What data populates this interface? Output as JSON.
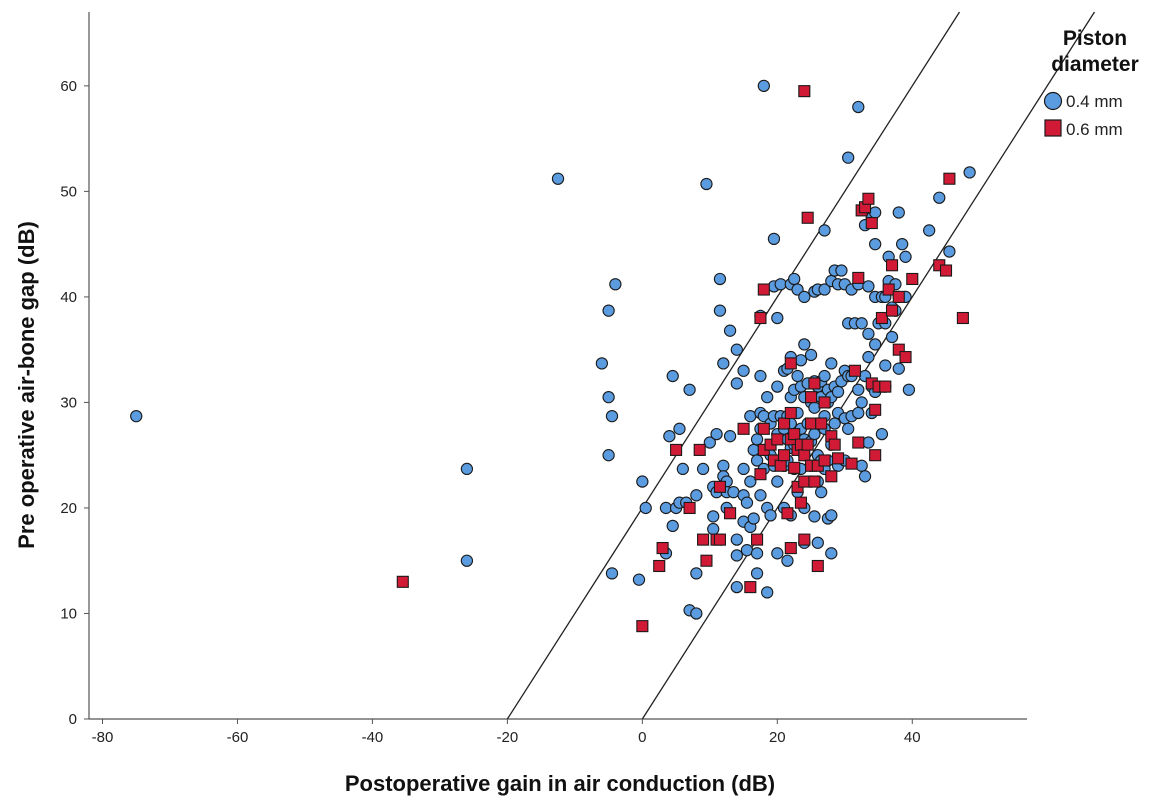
{
  "chart_data": {
    "type": "scatter",
    "xlabel": "Postoperative gain in air conduction (dB)",
    "ylabel": "Pre operative air-bone gap (dB)",
    "xlim": [
      -82,
      57
    ],
    "ylim": [
      0,
      67
    ],
    "x_ticks": [
      -80,
      -60,
      -40,
      -20,
      0,
      20,
      40
    ],
    "y_ticks": [
      0,
      10,
      20,
      30,
      40,
      50,
      60
    ],
    "grid": false,
    "legend": {
      "title": "Piston diameter",
      "title_lines": [
        "Piston",
        "diameter"
      ],
      "placement": "top-right",
      "entries": [
        "0.4 mm",
        "0.6 mm"
      ]
    },
    "reference_lines": [
      {
        "x0": -20,
        "y0": 0,
        "slope": 1
      },
      {
        "x0": 0,
        "y0": 0,
        "slope": 1
      }
    ],
    "series": [
      {
        "name": "0.4 mm",
        "marker": "circle",
        "color": "#5B9BDF",
        "edge": "#1a1a1a",
        "points": [
          [
            -75,
            28.7
          ],
          [
            -26,
            23.7
          ],
          [
            -26,
            15
          ],
          [
            -12.5,
            51.2
          ],
          [
            -6,
            33.7
          ],
          [
            -5,
            38.7
          ],
          [
            -5,
            30.5
          ],
          [
            -5,
            25
          ],
          [
            -4.5,
            28.7
          ],
          [
            -4,
            41.2
          ],
          [
            -4.5,
            13.8
          ],
          [
            -0.5,
            13.2
          ],
          [
            0,
            22.5
          ],
          [
            0.5,
            20
          ],
          [
            3.5,
            20
          ],
          [
            4,
            26.8
          ],
          [
            3.5,
            15.7
          ],
          [
            4.5,
            32.5
          ],
          [
            4.5,
            18.3
          ],
          [
            5,
            20
          ],
          [
            5.5,
            27.5
          ],
          [
            5.5,
            20.5
          ],
          [
            6.5,
            20.5
          ],
          [
            6,
            23.7
          ],
          [
            7,
            31.2
          ],
          [
            8,
            21.2
          ],
          [
            8,
            13.8
          ],
          [
            7,
            10.3
          ],
          [
            8,
            10
          ],
          [
            9,
            23.7
          ],
          [
            9.5,
            50.7
          ],
          [
            10,
            26.2
          ],
          [
            10.5,
            22
          ],
          [
            10.5,
            19.2
          ],
          [
            10.5,
            18
          ],
          [
            11,
            27
          ],
          [
            11,
            21.5
          ],
          [
            11.5,
            41.7
          ],
          [
            11.5,
            38.7
          ],
          [
            12,
            33.7
          ],
          [
            12,
            24
          ],
          [
            12,
            23
          ],
          [
            12.5,
            22.5
          ],
          [
            12.5,
            21.5
          ],
          [
            12.5,
            20
          ],
          [
            13,
            36.8
          ],
          [
            13,
            26.8
          ],
          [
            13.5,
            21.5
          ],
          [
            14,
            35
          ],
          [
            14,
            31.8
          ],
          [
            14,
            17
          ],
          [
            14,
            15.5
          ],
          [
            14,
            12.5
          ],
          [
            15,
            33
          ],
          [
            15,
            23.7
          ],
          [
            15,
            21.2
          ],
          [
            15,
            18.7
          ],
          [
            15.5,
            20.5
          ],
          [
            15.5,
            16
          ],
          [
            16,
            28.7
          ],
          [
            16,
            22.5
          ],
          [
            16,
            18.2
          ],
          [
            16.5,
            25.5
          ],
          [
            16.5,
            19
          ],
          [
            17,
            26.5
          ],
          [
            17,
            24.5
          ],
          [
            17,
            15.7
          ],
          [
            17,
            13.8
          ],
          [
            17.5,
            38.2
          ],
          [
            17.5,
            32.5
          ],
          [
            17.5,
            29
          ],
          [
            17.5,
            27.5
          ],
          [
            17.5,
            21.2
          ],
          [
            18,
            60
          ],
          [
            18,
            28.7
          ],
          [
            18,
            25.5
          ],
          [
            18,
            23.7
          ],
          [
            18.5,
            30.5
          ],
          [
            18.5,
            20
          ],
          [
            18.5,
            12
          ],
          [
            19,
            28
          ],
          [
            19,
            25
          ],
          [
            19,
            19.3
          ],
          [
            19.5,
            45.5
          ],
          [
            19.5,
            41
          ],
          [
            19.5,
            28.7
          ],
          [
            19.5,
            24
          ],
          [
            20,
            38
          ],
          [
            20,
            31.5
          ],
          [
            20,
            27
          ],
          [
            20,
            22.5
          ],
          [
            20,
            15.7
          ],
          [
            20.5,
            41.2
          ],
          [
            20.5,
            28.7
          ],
          [
            21,
            33
          ],
          [
            21,
            27.5
          ],
          [
            21,
            24
          ],
          [
            21,
            20
          ],
          [
            21.5,
            33.2
          ],
          [
            21.5,
            28.7
          ],
          [
            21.5,
            26.5
          ],
          [
            21.5,
            24.5
          ],
          [
            21.5,
            15
          ],
          [
            22,
            41.2
          ],
          [
            22,
            34.3
          ],
          [
            22,
            30.5
          ],
          [
            22,
            28
          ],
          [
            22,
            25.7
          ],
          [
            22,
            19.3
          ],
          [
            22.5,
            41.7
          ],
          [
            22.5,
            31.2
          ],
          [
            22.5,
            26
          ],
          [
            22.5,
            23.7
          ],
          [
            23,
            40.7
          ],
          [
            23,
            32.5
          ],
          [
            23,
            29
          ],
          [
            23,
            21.5
          ],
          [
            23.5,
            34
          ],
          [
            23.5,
            31.5
          ],
          [
            23.5,
            27.5
          ],
          [
            23.5,
            23.7
          ],
          [
            24,
            40
          ],
          [
            24,
            35.5
          ],
          [
            24,
            30.5
          ],
          [
            24,
            26.5
          ],
          [
            24,
            25
          ],
          [
            24,
            20
          ],
          [
            24,
            16.7
          ],
          [
            24.5,
            31.8
          ],
          [
            24.5,
            28
          ],
          [
            25,
            34.5
          ],
          [
            25,
            30
          ],
          [
            25,
            26.3
          ],
          [
            25,
            24
          ],
          [
            25,
            22.5
          ],
          [
            25.5,
            40.5
          ],
          [
            25.5,
            32
          ],
          [
            25.5,
            29.5
          ],
          [
            25.5,
            27
          ],
          [
            25.5,
            19.2
          ],
          [
            26,
            40.7
          ],
          [
            26,
            31.5
          ],
          [
            26,
            28
          ],
          [
            26,
            25
          ],
          [
            26,
            22.5
          ],
          [
            26,
            16.7
          ],
          [
            26.5,
            32
          ],
          [
            26.5,
            30.5
          ],
          [
            26.5,
            24.5
          ],
          [
            26.5,
            21.5
          ],
          [
            27,
            46.3
          ],
          [
            27,
            40.7
          ],
          [
            27,
            32.5
          ],
          [
            27,
            28.7
          ],
          [
            27,
            27.5
          ],
          [
            27,
            23.7
          ],
          [
            27.5,
            31.2
          ],
          [
            27.5,
            30
          ],
          [
            27.5,
            24.5
          ],
          [
            27.5,
            19
          ],
          [
            28,
            41.5
          ],
          [
            28,
            33.7
          ],
          [
            28,
            30.5
          ],
          [
            28,
            26
          ],
          [
            28,
            15.7
          ],
          [
            28,
            19.3
          ],
          [
            28.5,
            42.5
          ],
          [
            28.5,
            31.5
          ],
          [
            28.5,
            28
          ],
          [
            29,
            41.2
          ],
          [
            29,
            31
          ],
          [
            29,
            29
          ],
          [
            29,
            24
          ],
          [
            29.5,
            42.5
          ],
          [
            29.5,
            32
          ],
          [
            30,
            41.2
          ],
          [
            30,
            33
          ],
          [
            30,
            28.5
          ],
          [
            30,
            24.5
          ],
          [
            30.5,
            53.2
          ],
          [
            30.5,
            37.5
          ],
          [
            30.5,
            32.5
          ],
          [
            30.5,
            27.5
          ],
          [
            31,
            40.7
          ],
          [
            31,
            32.5
          ],
          [
            31,
            28.7
          ],
          [
            31.5,
            37.5
          ],
          [
            32,
            58
          ],
          [
            32,
            41.2
          ],
          [
            32,
            31.2
          ],
          [
            32,
            29
          ],
          [
            32.5,
            37.5
          ],
          [
            32.5,
            30
          ],
          [
            32.5,
            24
          ],
          [
            33,
            46.8
          ],
          [
            33,
            32.5
          ],
          [
            33,
            23
          ],
          [
            33.5,
            41
          ],
          [
            33.5,
            36.5
          ],
          [
            33.5,
            34.3
          ],
          [
            33.5,
            26.2
          ],
          [
            34,
            47.5
          ],
          [
            34,
            31.5
          ],
          [
            34,
            29
          ],
          [
            34.5,
            48
          ],
          [
            34.5,
            45
          ],
          [
            34.5,
            40
          ],
          [
            34.5,
            35.5
          ],
          [
            34.5,
            31
          ],
          [
            35,
            37.5
          ],
          [
            35,
            31.5
          ],
          [
            35.5,
            40
          ],
          [
            35.5,
            27
          ],
          [
            36,
            40
          ],
          [
            36,
            37.5
          ],
          [
            36,
            33.5
          ],
          [
            36,
            31.5
          ],
          [
            36.5,
            43.8
          ],
          [
            36.5,
            41.5
          ],
          [
            37,
            39
          ],
          [
            37,
            36.2
          ],
          [
            37.5,
            38.7
          ],
          [
            37.5,
            41.2
          ],
          [
            38,
            48
          ],
          [
            38,
            40
          ],
          [
            38,
            33.2
          ],
          [
            38.5,
            45
          ],
          [
            39,
            43.8
          ],
          [
            39,
            40
          ],
          [
            39.5,
            31.2
          ],
          [
            42.5,
            46.3
          ],
          [
            44,
            49.4
          ],
          [
            45.5,
            44.3
          ],
          [
            48.5,
            51.8
          ]
        ]
      },
      {
        "name": "0.6 mm",
        "marker": "square",
        "color": "#D11A35",
        "edge": "#1a1a1a",
        "points": [
          [
            -35.5,
            13
          ],
          [
            0,
            8.8
          ],
          [
            2.5,
            14.5
          ],
          [
            3,
            16.2
          ],
          [
            5,
            25.5
          ],
          [
            7,
            20
          ],
          [
            8.5,
            25.5
          ],
          [
            9,
            17
          ],
          [
            9.5,
            15
          ],
          [
            11,
            17
          ],
          [
            11.5,
            22
          ],
          [
            11.5,
            17
          ],
          [
            13,
            19.5
          ],
          [
            15,
            27.5
          ],
          [
            16,
            12.5
          ],
          [
            17,
            17
          ],
          [
            17.5,
            38
          ],
          [
            17.5,
            23.2
          ],
          [
            18,
            27.5
          ],
          [
            18,
            40.7
          ],
          [
            18,
            25.5
          ],
          [
            19,
            26
          ],
          [
            19.5,
            24.5
          ],
          [
            20,
            26.5
          ],
          [
            20.5,
            24
          ],
          [
            21,
            28
          ],
          [
            21,
            25
          ],
          [
            21.5,
            19.5
          ],
          [
            22,
            33.7
          ],
          [
            22,
            29
          ],
          [
            22,
            26.5
          ],
          [
            22,
            16.2
          ],
          [
            22.5,
            27
          ],
          [
            22.5,
            23.8
          ],
          [
            23,
            25.5
          ],
          [
            23,
            22
          ],
          [
            23.5,
            20.5
          ],
          [
            23.5,
            26
          ],
          [
            24,
            59.5
          ],
          [
            24,
            25
          ],
          [
            24,
            22.5
          ],
          [
            24,
            17
          ],
          [
            24.5,
            47.5
          ],
          [
            24.5,
            26
          ],
          [
            25,
            30.5
          ],
          [
            25,
            24
          ],
          [
            25,
            28
          ],
          [
            25.5,
            31.8
          ],
          [
            25.5,
            22.5
          ],
          [
            26,
            14.5
          ],
          [
            26,
            24
          ],
          [
            26.5,
            28
          ],
          [
            27,
            30
          ],
          [
            27,
            24.5
          ],
          [
            28,
            26.8
          ],
          [
            28,
            23
          ],
          [
            28.5,
            26
          ],
          [
            29,
            24.7
          ],
          [
            31,
            24.2
          ],
          [
            31.5,
            33
          ],
          [
            32,
            41.8
          ],
          [
            32,
            26.2
          ],
          [
            32.5,
            48.2
          ],
          [
            33,
            48.5
          ],
          [
            33.5,
            49.3
          ],
          [
            34,
            31.8
          ],
          [
            34,
            47
          ],
          [
            34.5,
            29.3
          ],
          [
            34.5,
            25
          ],
          [
            35,
            31.5
          ],
          [
            35.5,
            38
          ],
          [
            36,
            31.5
          ],
          [
            36.5,
            40.7
          ],
          [
            37,
            43
          ],
          [
            37,
            38.7
          ],
          [
            38,
            40
          ],
          [
            38,
            35
          ],
          [
            39,
            34.3
          ],
          [
            40,
            41.7
          ],
          [
            44,
            43
          ],
          [
            45,
            42.5
          ],
          [
            45.5,
            51.2
          ],
          [
            47.5,
            38
          ]
        ]
      }
    ]
  }
}
